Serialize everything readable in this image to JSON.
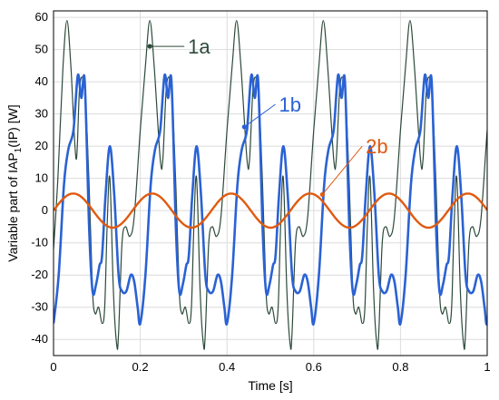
{
  "chart_data": {
    "type": "line",
    "xlabel": "Time [s]",
    "ylabel_parts": [
      "Variable part of IAP",
      "1",
      "(IP)  [W]"
    ],
    "xlim": [
      0,
      1
    ],
    "ylim": [
      -45,
      62
    ],
    "x_ticks": [
      0,
      0.2,
      0.4,
      0.6,
      0.8,
      1
    ],
    "x_tick_labels": [
      "0",
      "0.2",
      "0.4",
      "0.6",
      "0.8",
      "1"
    ],
    "y_ticks": [
      -40,
      -30,
      -20,
      -10,
      0,
      10,
      20,
      30,
      40,
      50,
      60
    ],
    "y_tick_labels": [
      "-40",
      "-30",
      "-20",
      "-10",
      "0",
      "10",
      "20",
      "30",
      "40",
      "50",
      "60"
    ],
    "grid": true,
    "series": [
      {
        "name": "1a",
        "color": "#2d4a3a",
        "x": [
          0,
          0.01,
          0.022,
          0.031,
          0.04,
          0.052,
          0.06,
          0.068,
          0.074,
          0.082,
          0.09,
          0.096,
          0.104,
          0.112,
          0.118,
          0.124,
          0.13,
          0.138,
          0.146,
          0.15,
          0.158,
          0.166,
          0.176,
          0.186,
          0.2,
          0.212,
          0.222,
          0.232,
          0.246
        ],
        "y": [
          -12,
          10,
          45,
          59,
          45,
          16,
          38,
          41,
          34,
          8,
          -25,
          -32,
          -30,
          -35,
          -30,
          -3,
          10,
          -25,
          -42,
          -38,
          -10,
          -5,
          -8,
          -2,
          25,
          45,
          59,
          45,
          16
        ],
        "period": 0.2
      },
      {
        "name": "1b",
        "color": "#2a62d4",
        "x": [
          0,
          0.012,
          0.024,
          0.034,
          0.046,
          0.056,
          0.064,
          0.072,
          0.082,
          0.09,
          0.098,
          0.106,
          0.112,
          0.12,
          0.13,
          0.14,
          0.15,
          0.158,
          0.168,
          0.178,
          0.186,
          0.194,
          0.2,
          0.212,
          0.224,
          0.234
        ],
        "y": [
          -35,
          -20,
          8,
          19,
          25,
          42,
          35,
          40,
          -5,
          -25,
          -23,
          -17,
          -14,
          5,
          20,
          5,
          -20,
          -25,
          -25,
          -20,
          -22,
          -30,
          -35,
          -20,
          8,
          19
        ],
        "period": 0.2
      },
      {
        "name": "2b",
        "color": "#e05a10",
        "amplitude": 5.3,
        "period": 0.182,
        "phase_zero": 0.0
      }
    ],
    "annotations": [
      {
        "label": "1a",
        "color": "#2d4a3a",
        "text_x": 0.31,
        "text_y": 51,
        "point_x": 0.222,
        "point_y": 51
      },
      {
        "label": "1b",
        "color": "#2a62d4",
        "text_x": 0.52,
        "text_y": 33,
        "point_x": 0.44,
        "point_y": 26
      },
      {
        "label": "2b",
        "color": "#e05a10",
        "text_x": 0.72,
        "text_y": 20,
        "point_x": 0.62,
        "point_y": 5
      }
    ]
  }
}
